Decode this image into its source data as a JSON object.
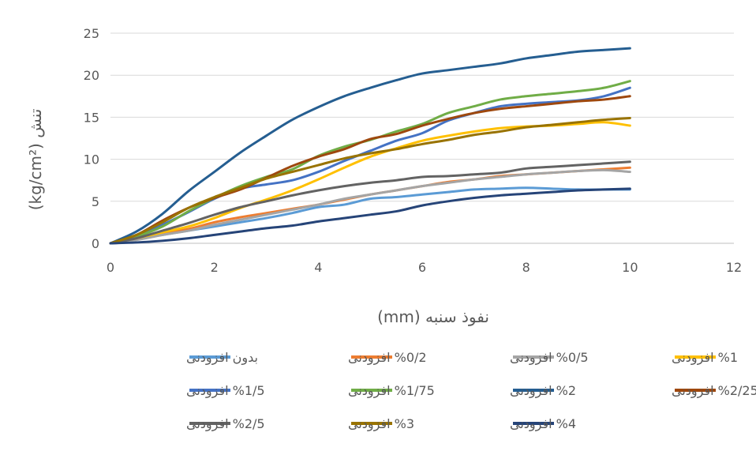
{
  "chart_data": {
    "type": "line",
    "title": "",
    "xlabel": "نفوذ سنبه (mm)",
    "ylabel": "تنش (kg/cm²)",
    "xlim": [
      0,
      12
    ],
    "ylim": [
      0,
      25
    ],
    "x_ticks": [
      0,
      2,
      4,
      6,
      8,
      10,
      12
    ],
    "y_ticks": [
      0,
      5,
      10,
      15,
      20,
      25
    ],
    "grid": "horizontal",
    "legend_position": "bottom",
    "x": [
      0,
      0.5,
      1,
      1.5,
      2,
      2.5,
      3,
      3.5,
      4,
      4.5,
      5,
      5.5,
      6,
      6.5,
      7,
      7.5,
      8,
      8.5,
      9,
      9.5,
      10
    ],
    "series": [
      {
        "name": "بدون افزودنی",
        "color": "#5B9BD5",
        "values": [
          0,
          0.5,
          1.0,
          1.5,
          2.0,
          2.5,
          3.0,
          3.6,
          4.3,
          4.6,
          5.3,
          5.5,
          5.8,
          6.1,
          6.4,
          6.5,
          6.6,
          6.5,
          6.4,
          6.4,
          6.4
        ]
      },
      {
        "name": "%0/2 افزودنی",
        "color": "#ED7D31",
        "values": [
          0,
          0.5,
          1.2,
          1.7,
          2.5,
          3.1,
          3.6,
          4.1,
          4.6,
          5.2,
          5.8,
          6.3,
          6.8,
          7.3,
          7.6,
          8.0,
          8.2,
          8.4,
          8.6,
          8.8,
          9.0
        ]
      },
      {
        "name": "%0/5 افزودنی",
        "color": "#A5A5A5",
        "values": [
          0,
          0.4,
          1.0,
          1.5,
          2.2,
          2.8,
          3.4,
          4.0,
          4.6,
          5.3,
          5.8,
          6.3,
          6.8,
          7.2,
          7.6,
          7.9,
          8.2,
          8.4,
          8.6,
          8.7,
          8.5
        ]
      },
      {
        "name": "%1 افزودنی",
        "color": "#FFC000",
        "values": [
          0,
          0.6,
          1.3,
          2.0,
          3.0,
          4.2,
          5.2,
          6.3,
          7.6,
          9.0,
          10.3,
          11.3,
          12.2,
          12.8,
          13.3,
          13.7,
          13.9,
          14.0,
          14.2,
          14.4,
          14.0
        ]
      },
      {
        "name": "%1/5 افزودنی",
        "color": "#4472C4",
        "values": [
          0,
          0.9,
          2.2,
          3.7,
          5.3,
          6.5,
          7.0,
          7.5,
          8.5,
          9.8,
          11.0,
          12.2,
          13.1,
          14.6,
          15.5,
          16.3,
          16.6,
          16.8,
          17.0,
          17.5,
          18.5
        ]
      },
      {
        "name": "%1/75 افزودنی",
        "color": "#70AD47",
        "values": [
          0,
          0.8,
          2.0,
          3.8,
          5.4,
          6.8,
          7.9,
          8.8,
          10.4,
          11.5,
          12.3,
          13.3,
          14.2,
          15.5,
          16.3,
          17.1,
          17.5,
          17.8,
          18.1,
          18.5,
          19.3
        ]
      },
      {
        "name": "%2 افزودنی",
        "color": "#255E91",
        "values": [
          0,
          1.4,
          3.5,
          6.2,
          8.5,
          10.8,
          12.8,
          14.7,
          16.2,
          17.5,
          18.5,
          19.4,
          20.2,
          20.6,
          21.0,
          21.4,
          22.0,
          22.4,
          22.8,
          23.0,
          23.2
        ]
      },
      {
        "name": "%2/25 افزودنی",
        "color": "#9E480E",
        "values": [
          0,
          1.0,
          2.7,
          4.2,
          5.4,
          6.4,
          7.8,
          9.2,
          10.3,
          11.2,
          12.4,
          13.0,
          14.0,
          14.8,
          15.5,
          16.0,
          16.3,
          16.6,
          16.9,
          17.1,
          17.5
        ]
      },
      {
        "name": "%2/5 افزودنی",
        "color": "#636363",
        "values": [
          0,
          0.6,
          1.5,
          2.4,
          3.4,
          4.3,
          5.0,
          5.7,
          6.3,
          6.8,
          7.2,
          7.5,
          7.9,
          8.0,
          8.2,
          8.4,
          8.9,
          9.1,
          9.3,
          9.5,
          9.7
        ]
      },
      {
        "name": "%3 افزودنی",
        "color": "#997300",
        "values": [
          0,
          1.0,
          2.5,
          4.2,
          5.5,
          6.6,
          7.7,
          8.5,
          9.3,
          10.1,
          10.7,
          11.2,
          11.8,
          12.3,
          12.9,
          13.3,
          13.8,
          14.1,
          14.4,
          14.7,
          14.9
        ]
      },
      {
        "name": "%4 افزودنی",
        "color": "#264478",
        "values": [
          0,
          0.1,
          0.3,
          0.6,
          1.0,
          1.4,
          1.8,
          2.1,
          2.6,
          3.0,
          3.4,
          3.8,
          4.5,
          5.0,
          5.4,
          5.7,
          5.9,
          6.1,
          6.3,
          6.4,
          6.5
        ]
      }
    ]
  }
}
